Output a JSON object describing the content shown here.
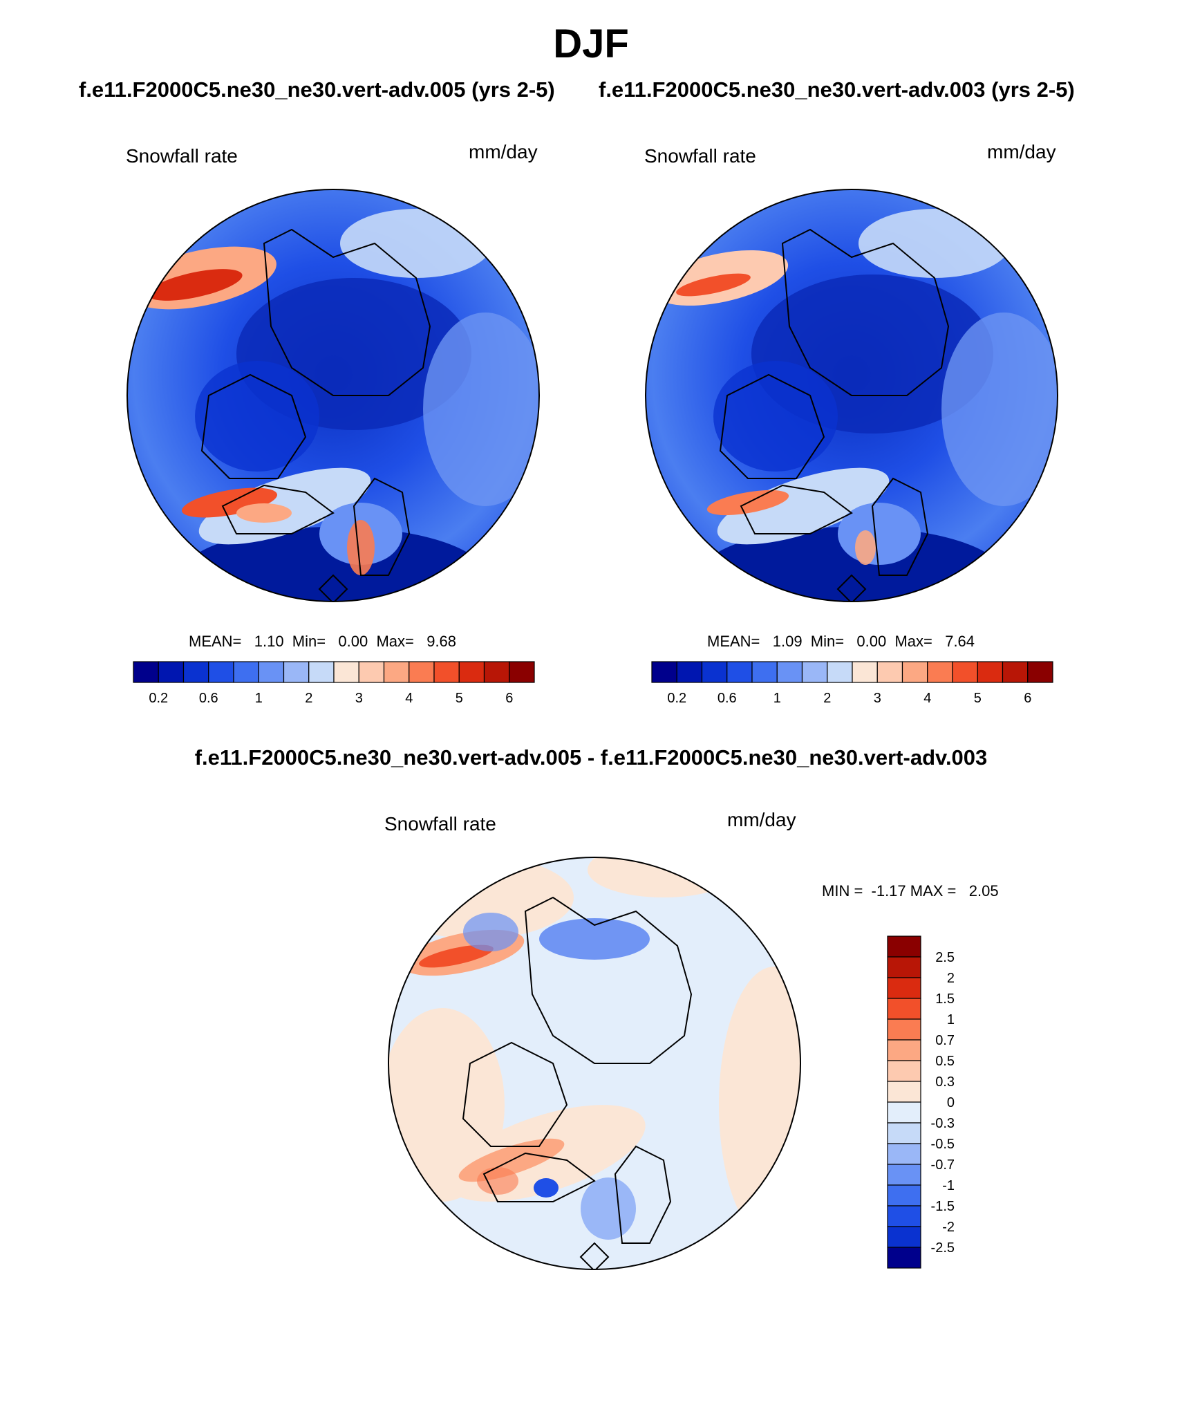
{
  "title": "DJF",
  "panels": [
    {
      "case_title": "f.e11.F2000C5.ne30_ne30.vert-adv.005 (yrs 2-5)",
      "variable": "Snowfall rate",
      "units": "mm/day",
      "stats": "MEAN=   1.10  Min=   0.00  Max=   9.68"
    },
    {
      "case_title": "f.e11.F2000C5.ne30_ne30.vert-adv.003 (yrs 2-5)",
      "variable": "Snowfall rate",
      "units": "mm/day",
      "stats": "MEAN=   1.09  Min=   0.00  Max=   7.64"
    }
  ],
  "abs_colorbar": {
    "colors": [
      "#00008c",
      "#0016b0",
      "#0a32d0",
      "#1f4fe6",
      "#3e6ff0",
      "#6992f5",
      "#9ab7f7",
      "#c6daf8",
      "#fbe6d6",
      "#fdcab0",
      "#fca883",
      "#fa7c52",
      "#f2502a",
      "#da2b10",
      "#b81606",
      "#8a0000"
    ],
    "tick_labels": [
      "0.2",
      "0.6",
      "1",
      "2",
      "3",
      "4",
      "5",
      "6"
    ]
  },
  "diff_panel": {
    "title": "f.e11.F2000C5.ne30_ne30.vert-adv.005 - f.e11.F2000C5.ne30_ne30.vert-adv.003",
    "variable": "Snowfall rate",
    "units": "mm/day",
    "stats": "MIN =  -1.17 MAX =   2.05"
  },
  "diff_colorbar": {
    "colors": [
      "#8a0000",
      "#b81606",
      "#da2b10",
      "#f2502a",
      "#fa7c52",
      "#fca883",
      "#fdcab0",
      "#fbe6d6",
      "#e3eefb",
      "#c6daf8",
      "#9ab7f7",
      "#6992f5",
      "#3e6ff0",
      "#1f4fe6",
      "#0a32d0",
      "#00008c"
    ],
    "tick_labels": [
      "2.5",
      "2",
      "1.5",
      "1",
      "0.7",
      "0.5",
      "0.3",
      "0",
      "-0.3",
      "-0.5",
      "-0.7",
      "-1",
      "-1.5",
      "-2",
      "-2.5"
    ]
  }
}
